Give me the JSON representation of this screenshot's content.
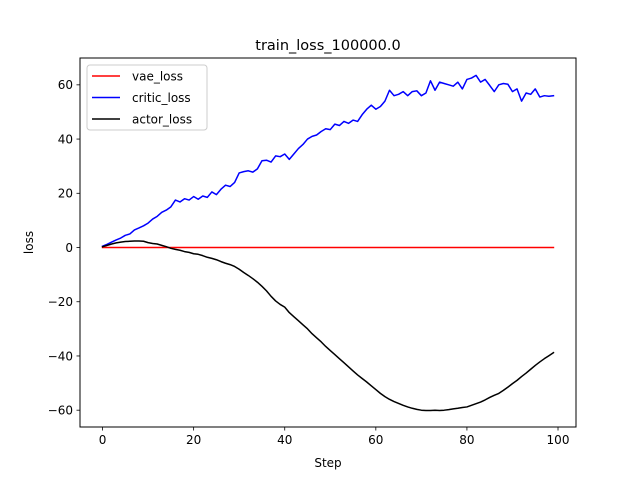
{
  "chart_data": {
    "type": "line",
    "title": "train_loss_100000.0",
    "xlabel": "Step",
    "ylabel": "loss",
    "xlim": [
      -4.95,
      103.95
    ],
    "ylim": [
      -66.2,
      69.9
    ],
    "xticks": [
      0,
      20,
      40,
      60,
      80,
      100
    ],
    "yticks": [
      -60,
      -40,
      -20,
      0,
      20,
      40,
      60
    ],
    "xtick_labels": [
      "0",
      "20",
      "40",
      "60",
      "80",
      "100"
    ],
    "ytick_labels": [
      "−60",
      "−40",
      "−20",
      "0",
      "20",
      "40",
      "60"
    ],
    "grid": false,
    "legend": "upper-left",
    "series": [
      {
        "name": "vae_loss",
        "color": "#ff0000",
        "x": [
          0,
          99
        ],
        "y": [
          0,
          0
        ]
      },
      {
        "name": "critic_loss",
        "color": "#0000ff",
        "x": [
          0,
          1,
          2,
          3,
          4,
          5,
          6,
          7,
          8,
          9,
          10,
          11,
          12,
          13,
          14,
          15,
          16,
          17,
          18,
          19,
          20,
          21,
          22,
          23,
          24,
          25,
          26,
          27,
          28,
          29,
          30,
          31,
          32,
          33,
          34,
          35,
          36,
          37,
          38,
          39,
          40,
          41,
          42,
          43,
          44,
          45,
          46,
          47,
          48,
          49,
          50,
          51,
          52,
          53,
          54,
          55,
          56,
          57,
          58,
          59,
          60,
          61,
          62,
          63,
          64,
          65,
          66,
          67,
          68,
          69,
          70,
          71,
          72,
          73,
          74,
          75,
          76,
          77,
          78,
          79,
          80,
          81,
          82,
          83,
          84,
          85,
          86,
          87,
          88,
          89,
          90,
          91,
          92,
          93,
          94,
          95,
          96,
          97,
          98,
          99
        ],
        "y": [
          0.5,
          1.2,
          2.0,
          2.8,
          3.5,
          4.5,
          5.0,
          6.5,
          7.2,
          8.0,
          9.0,
          10.5,
          11.5,
          13.0,
          13.8,
          15.0,
          17.5,
          16.8,
          18.0,
          17.5,
          18.8,
          17.8,
          19.0,
          18.5,
          20.5,
          19.5,
          21.5,
          23.0,
          22.5,
          24.0,
          27.5,
          28.0,
          28.3,
          27.8,
          29.0,
          32.0,
          32.2,
          31.5,
          33.8,
          33.5,
          34.5,
          32.5,
          34.5,
          36.5,
          38.0,
          40.0,
          41.0,
          41.5,
          42.8,
          43.8,
          43.5,
          45.5,
          45.0,
          46.5,
          45.8,
          47.0,
          46.5,
          49.0,
          51.0,
          52.5,
          51.0,
          52.0,
          54.0,
          58.0,
          56.0,
          56.5,
          57.5,
          56.0,
          57.5,
          57.8,
          56.0,
          57.0,
          61.5,
          58.0,
          61.0,
          60.5,
          60.0,
          59.5,
          61.0,
          58.5,
          62.0,
          62.5,
          63.5,
          61.0,
          62.0,
          59.8,
          57.5,
          60.0,
          60.5,
          60.2,
          57.5,
          58.5,
          54.0,
          57.0,
          56.5,
          58.5,
          55.5,
          56.0,
          55.8,
          56.0
        ]
      },
      {
        "name": "actor_loss",
        "color": "#000000",
        "x": [
          0,
          1,
          2,
          3,
          4,
          5,
          6,
          7,
          8,
          9,
          10,
          11,
          12,
          13,
          14,
          15,
          16,
          17,
          18,
          19,
          20,
          21,
          22,
          23,
          24,
          25,
          26,
          27,
          28,
          29,
          30,
          31,
          32,
          33,
          34,
          35,
          36,
          37,
          38,
          39,
          40,
          41,
          42,
          43,
          44,
          45,
          46,
          47,
          48,
          49,
          50,
          51,
          52,
          53,
          54,
          55,
          56,
          57,
          58,
          59,
          60,
          61,
          62,
          63,
          64,
          65,
          66,
          67,
          68,
          69,
          70,
          71,
          72,
          73,
          74,
          75,
          76,
          77,
          78,
          79,
          80,
          81,
          82,
          83,
          84,
          85,
          86,
          87,
          88,
          89,
          90,
          91,
          92,
          93,
          94,
          95,
          96,
          97,
          98,
          99
        ],
        "y": [
          0.3,
          0.8,
          1.3,
          1.7,
          2.0,
          2.2,
          2.3,
          2.4,
          2.4,
          2.3,
          1.8,
          1.5,
          1.3,
          0.8,
          0.3,
          -0.3,
          -0.7,
          -1.0,
          -1.5,
          -1.8,
          -2.3,
          -2.5,
          -3.0,
          -3.6,
          -4.0,
          -4.5,
          -5.2,
          -5.8,
          -6.3,
          -7.0,
          -8.0,
          -9.2,
          -10.3,
          -11.5,
          -12.8,
          -14.3,
          -16.0,
          -18.0,
          -19.7,
          -21.0,
          -22.0,
          -24.0,
          -25.5,
          -27.0,
          -28.5,
          -30.0,
          -31.8,
          -33.3,
          -34.8,
          -36.5,
          -38.0,
          -39.5,
          -41.0,
          -42.5,
          -44.0,
          -45.5,
          -47.0,
          -48.3,
          -49.6,
          -51.0,
          -52.4,
          -53.8,
          -55.0,
          -56.0,
          -56.8,
          -57.5,
          -58.2,
          -58.8,
          -59.3,
          -59.7,
          -60.0,
          -60.1,
          -60.1,
          -60.0,
          -60.1,
          -60.0,
          -59.8,
          -59.5,
          -59.3,
          -59.0,
          -58.8,
          -58.2,
          -57.6,
          -57.0,
          -56.2,
          -55.3,
          -54.5,
          -53.8,
          -52.7,
          -51.5,
          -50.2,
          -49.0,
          -47.6,
          -46.3,
          -44.9,
          -43.5,
          -42.2,
          -41.0,
          -39.9,
          -38.8
        ]
      }
    ]
  }
}
